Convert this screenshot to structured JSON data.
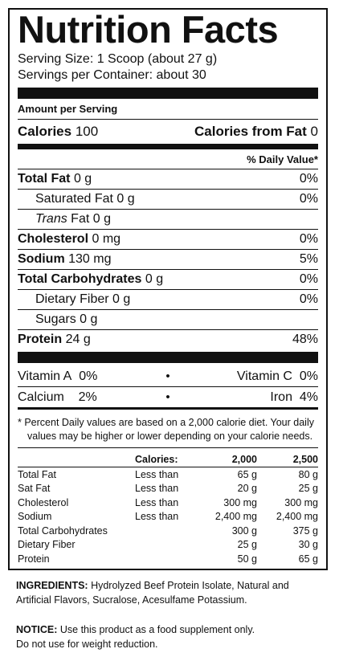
{
  "panel": {
    "title": "Nutrition Facts",
    "serving_size": "Serving Size: 1 Scoop (about 27 g)",
    "servings_per_container": "Servings per Container: about 30",
    "amount_per_serving": "Amount per Serving",
    "calories_label": "Calories",
    "calories_value": "100",
    "calories_fat_label": "Calories from Fat",
    "calories_fat_value": "0",
    "daily_value_header": "% Daily Value*",
    "nutrients": [
      {
        "name": "Total Fat",
        "amount": "0 g",
        "dv": "0%"
      },
      {
        "name": "Saturated Fat",
        "amount": "0 g",
        "dv": "0%"
      },
      {
        "name_italic": "Trans",
        "name": "Fat",
        "amount": "0 g",
        "dv": ""
      },
      {
        "name": "Cholesterol",
        "amount": "0 mg",
        "dv": "0%"
      },
      {
        "name": "Sodium",
        "amount": "130 mg",
        "dv": "5%"
      },
      {
        "name": "Total Carbohydrates",
        "amount": "0 g",
        "dv": "0%"
      },
      {
        "name": "Dietary Fiber",
        "amount": "0 g",
        "dv": "0%"
      },
      {
        "name": "Sugars",
        "amount": "0 g",
        "dv": ""
      },
      {
        "name": "Protein",
        "amount": "24 g",
        "dv": "48%"
      }
    ],
    "vitamins": [
      {
        "left_name": "Vitamin A",
        "left_value": "0%",
        "right_name": "Vitamin C",
        "right_value": "0%"
      },
      {
        "left_name": "Calcium",
        "left_value": "2%",
        "right_name": "Iron",
        "right_value": "4%"
      }
    ],
    "bullet": "•",
    "footnote_line1": "* Percent Daily values are based on a 2,000 calorie diet. Your daily",
    "footnote_line2": "values may be higher or lower depending on your calorie needs.",
    "dv_table": {
      "header": [
        "",
        "Calories:",
        "2,000",
        "2,500"
      ],
      "rows": [
        [
          "Total Fat",
          "Less than",
          "65 g",
          "80 g"
        ],
        [
          "Sat Fat",
          "Less than",
          "20 g",
          "25 g"
        ],
        [
          "Cholesterol",
          "Less than",
          "300 mg",
          "300 mg"
        ],
        [
          "Sodium",
          "Less than",
          "2,400 mg",
          "2,400 mg"
        ],
        [
          "Total Carbohydrates",
          "",
          "300 g",
          "375 g"
        ],
        [
          "Dietary Fiber",
          "",
          "25 g",
          "30 g"
        ],
        [
          "Protein",
          "",
          "50 g",
          "65 g"
        ]
      ]
    }
  },
  "ingredients": {
    "label": "INGREDIENTS:",
    "text_line1": " Hydrolyzed Beef Protein Isolate, Natural and",
    "text_line2": "Artificial Flavors, Sucralose, Acesulfame Potassium."
  },
  "notice": {
    "label": "NOTICE:",
    "text_line1": " Use this product as a food supplement only.",
    "text_line2": "Do not use for weight reduction."
  }
}
